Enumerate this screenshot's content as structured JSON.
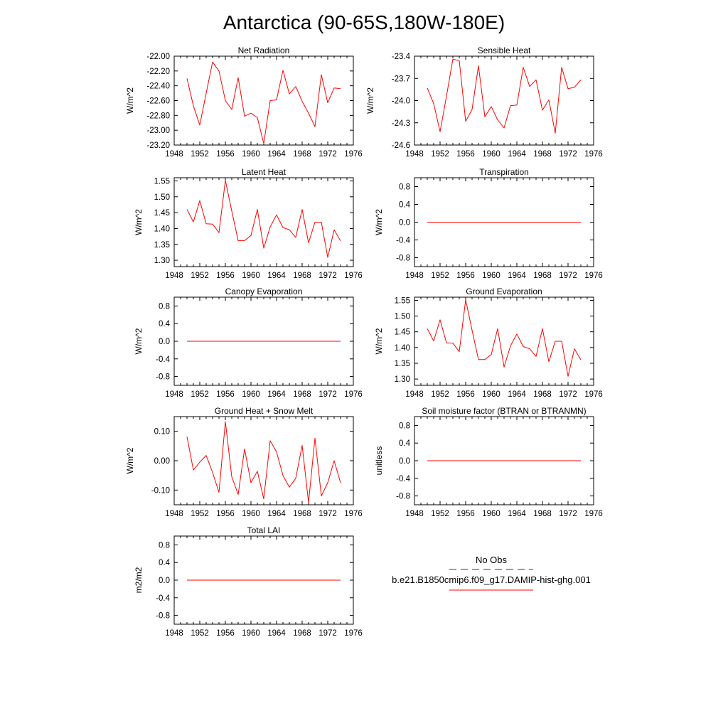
{
  "title": "Antarctica (90-65S,180W-180E)",
  "colors": {
    "model_line": "#ff0000",
    "obs_line": "#2b2b9a",
    "axes": "#000000"
  },
  "chart_data": [
    {
      "type": "line",
      "title": "Net Radiation",
      "ylabel": "W/m^2",
      "xlim": [
        1948,
        1976
      ],
      "xticks": [
        1948,
        1952,
        1956,
        1960,
        1964,
        1968,
        1972,
        1976
      ],
      "ylim": [
        -23.2,
        -22.0
      ],
      "yticks": [
        -23.2,
        -23.0,
        -22.8,
        -22.6,
        -22.4,
        -22.2,
        -22.0
      ],
      "ytick_labels": [
        "-23.20",
        "-23.00",
        "-22.80",
        "-22.60",
        "-22.40",
        "-22.20",
        "-22.00"
      ],
      "series": [
        {
          "name": "b.e21.B1850cmip6.f09_g17.DAMIP-hist-ghg.001",
          "x": [
            1950,
            1951,
            1952,
            1953,
            1954,
            1955,
            1956,
            1957,
            1958,
            1959,
            1960,
            1961,
            1962,
            1963,
            1964,
            1965,
            1966,
            1967,
            1968,
            1969,
            1970,
            1971,
            1972,
            1973,
            1974
          ],
          "y": [
            -22.3,
            -22.67,
            -22.93,
            -22.5,
            -22.08,
            -22.2,
            -22.6,
            -22.72,
            -22.29,
            -22.81,
            -22.77,
            -22.83,
            -23.18,
            -22.6,
            -22.59,
            -22.19,
            -22.51,
            -22.41,
            -22.61,
            -22.77,
            -22.95,
            -22.25,
            -22.63,
            -22.43,
            -22.44
          ]
        }
      ]
    },
    {
      "type": "line",
      "title": "Sensible Heat",
      "ylabel": "W/m^2",
      "xlim": [
        1948,
        1976
      ],
      "xticks": [
        1948,
        1952,
        1956,
        1960,
        1964,
        1968,
        1972,
        1976
      ],
      "ylim": [
        -24.6,
        -23.4
      ],
      "yticks": [
        -24.6,
        -24.3,
        -24.0,
        -23.7,
        -23.4
      ],
      "ytick_labels": [
        "-24.6",
        "-24.3",
        "-24.0",
        "-23.7",
        "-23.4"
      ],
      "series": [
        {
          "name": "b.e21.B1850cmip6.f09_g17.DAMIP-hist-ghg.001",
          "x": [
            1950,
            1951,
            1952,
            1953,
            1954,
            1955,
            1956,
            1957,
            1958,
            1959,
            1960,
            1961,
            1962,
            1963,
            1964,
            1965,
            1966,
            1967,
            1968,
            1969,
            1970,
            1971,
            1972,
            1973,
            1974
          ],
          "y": [
            -23.83,
            -24.04,
            -24.42,
            -23.94,
            -23.44,
            -23.46,
            -24.28,
            -24.12,
            -23.53,
            -24.22,
            -24.08,
            -24.26,
            -24.37,
            -24.07,
            -24.06,
            -23.55,
            -23.81,
            -23.72,
            -24.13,
            -23.99,
            -24.44,
            -23.55,
            -23.84,
            -23.82,
            -23.72
          ]
        }
      ]
    },
    {
      "type": "line",
      "title": "Latent Heat",
      "ylabel": "W/m^2",
      "xlim": [
        1948,
        1976
      ],
      "xticks": [
        1948,
        1952,
        1956,
        1960,
        1964,
        1968,
        1972,
        1976
      ],
      "ylim": [
        1.28,
        1.56
      ],
      "yticks": [
        1.3,
        1.35,
        1.4,
        1.45,
        1.5,
        1.55
      ],
      "ytick_labels": [
        "1.30",
        "1.35",
        "1.40",
        "1.45",
        "1.50",
        "1.55"
      ],
      "series": [
        {
          "name": "b.e21.B1850cmip6.f09_g17.DAMIP-hist-ghg.001",
          "x": [
            1950,
            1951,
            1952,
            1953,
            1954,
            1955,
            1956,
            1957,
            1958,
            1959,
            1960,
            1961,
            1962,
            1963,
            1964,
            1965,
            1966,
            1967,
            1968,
            1969,
            1970,
            1971,
            1972,
            1973,
            1974
          ],
          "y": [
            1.46,
            1.421,
            1.488,
            1.415,
            1.414,
            1.387,
            1.552,
            1.455,
            1.362,
            1.362,
            1.378,
            1.46,
            1.338,
            1.405,
            1.443,
            1.403,
            1.396,
            1.372,
            1.46,
            1.355,
            1.42,
            1.42,
            1.309,
            1.396,
            1.361
          ]
        }
      ]
    },
    {
      "type": "line",
      "title": "Transpiration",
      "ylabel": "W/m^2",
      "xlim": [
        1948,
        1976
      ],
      "xticks": [
        1948,
        1952,
        1956,
        1960,
        1964,
        1968,
        1972,
        1976
      ],
      "ylim": [
        -1.0,
        1.0
      ],
      "yticks": [
        -0.8,
        -0.4,
        0.0,
        0.4,
        0.8
      ],
      "ytick_labels": [
        "-0.8",
        "-0.4",
        "0.0",
        "0.4",
        "0.8"
      ],
      "series": [
        {
          "name": "b.e21.B1850cmip6.f09_g17.DAMIP-hist-ghg.001",
          "x": [
            1950,
            1974
          ],
          "y": [
            0.0,
            0.0
          ]
        }
      ]
    },
    {
      "type": "line",
      "title": "Canopy Evaporation",
      "ylabel": "W/m^2",
      "xlim": [
        1948,
        1976
      ],
      "xticks": [
        1948,
        1952,
        1956,
        1960,
        1964,
        1968,
        1972,
        1976
      ],
      "ylim": [
        -1.0,
        1.0
      ],
      "yticks": [
        -0.8,
        -0.4,
        0.0,
        0.4,
        0.8
      ],
      "ytick_labels": [
        "-0.8",
        "-0.4",
        "0.0",
        "0.4",
        "0.8"
      ],
      "series": [
        {
          "name": "b.e21.B1850cmip6.f09_g17.DAMIP-hist-ghg.001",
          "x": [
            1950,
            1974
          ],
          "y": [
            0.0,
            0.0
          ]
        }
      ]
    },
    {
      "type": "line",
      "title": "Ground Evaporation",
      "ylabel": "W/m^2",
      "xlim": [
        1948,
        1976
      ],
      "xticks": [
        1948,
        1952,
        1956,
        1960,
        1964,
        1968,
        1972,
        1976
      ],
      "ylim": [
        1.28,
        1.56
      ],
      "yticks": [
        1.3,
        1.35,
        1.4,
        1.45,
        1.5,
        1.55
      ],
      "ytick_labels": [
        "1.30",
        "1.35",
        "1.40",
        "1.45",
        "1.50",
        "1.55"
      ],
      "series": [
        {
          "name": "b.e21.B1850cmip6.f09_g17.DAMIP-hist-ghg.001",
          "x": [
            1950,
            1951,
            1952,
            1953,
            1954,
            1955,
            1956,
            1957,
            1958,
            1959,
            1960,
            1961,
            1962,
            1963,
            1964,
            1965,
            1966,
            1967,
            1968,
            1969,
            1970,
            1971,
            1972,
            1973,
            1974
          ],
          "y": [
            1.46,
            1.421,
            1.488,
            1.415,
            1.414,
            1.387,
            1.552,
            1.455,
            1.362,
            1.362,
            1.378,
            1.46,
            1.338,
            1.405,
            1.443,
            1.403,
            1.396,
            1.372,
            1.46,
            1.355,
            1.42,
            1.42,
            1.309,
            1.396,
            1.361
          ]
        }
      ]
    },
    {
      "type": "line",
      "title": "Ground Heat + Snow Melt",
      "ylabel": "W/m^2",
      "xlim": [
        1948,
        1976
      ],
      "xticks": [
        1948,
        1952,
        1956,
        1960,
        1964,
        1968,
        1972,
        1976
      ],
      "ylim": [
        -0.15,
        0.15
      ],
      "yticks": [
        -0.1,
        0.0,
        0.1
      ],
      "ytick_labels": [
        "-0.10",
        "0.00",
        "0.10"
      ],
      "series": [
        {
          "name": "b.e21.B1850cmip6.f09_g17.DAMIP-hist-ghg.001",
          "x": [
            1950,
            1951,
            1952,
            1953,
            1954,
            1955,
            1956,
            1957,
            1958,
            1959,
            1960,
            1961,
            1962,
            1963,
            1964,
            1965,
            1966,
            1967,
            1968,
            1969,
            1970,
            1971,
            1972,
            1973,
            1974
          ],
          "y": [
            0.082,
            -0.032,
            -0.005,
            0.018,
            -0.04,
            -0.108,
            0.133,
            -0.055,
            -0.115,
            0.04,
            -0.075,
            -0.036,
            -0.13,
            0.068,
            0.03,
            -0.05,
            -0.09,
            -0.06,
            0.052,
            -0.142,
            0.077,
            -0.12,
            -0.075,
            0.0,
            -0.075
          ]
        }
      ]
    },
    {
      "type": "line",
      "title": "Soil moisture factor (BTRAN or BTRANMN)",
      "ylabel": "unitless",
      "xlim": [
        1948,
        1976
      ],
      "xticks": [
        1948,
        1952,
        1956,
        1960,
        1964,
        1968,
        1972,
        1976
      ],
      "ylim": [
        -1.0,
        1.0
      ],
      "yticks": [
        -0.8,
        -0.4,
        0.0,
        0.4,
        0.8
      ],
      "ytick_labels": [
        "-0.8",
        "-0.4",
        "0.0",
        "0.4",
        "0.8"
      ],
      "series": [
        {
          "name": "b.e21.B1850cmip6.f09_g17.DAMIP-hist-ghg.001",
          "x": [
            1950,
            1974
          ],
          "y": [
            0.0,
            0.0
          ]
        }
      ]
    },
    {
      "type": "line",
      "title": "Total LAI",
      "ylabel": "m2/m2",
      "xlim": [
        1948,
        1976
      ],
      "xticks": [
        1948,
        1952,
        1956,
        1960,
        1964,
        1968,
        1972,
        1976
      ],
      "ylim": [
        -1.0,
        1.0
      ],
      "yticks": [
        -0.8,
        -0.4,
        0.0,
        0.4,
        0.8
      ],
      "ytick_labels": [
        "-0.8",
        "-0.4",
        "0.0",
        "0.4",
        "0.8"
      ],
      "series": [
        {
          "name": "b.e21.B1850cmip6.f09_g17.DAMIP-hist-ghg.001",
          "x": [
            1950,
            1974
          ],
          "y": [
            0.0,
            0.0
          ]
        }
      ]
    }
  ],
  "legend": {
    "entries": [
      {
        "label": "No Obs",
        "style": "dashed",
        "color": "#2b2b9a"
      },
      {
        "label": "b.e21.B1850cmip6.f09_g17.DAMIP-hist-ghg.001",
        "style": "solid",
        "color": "#ff0000"
      }
    ]
  }
}
